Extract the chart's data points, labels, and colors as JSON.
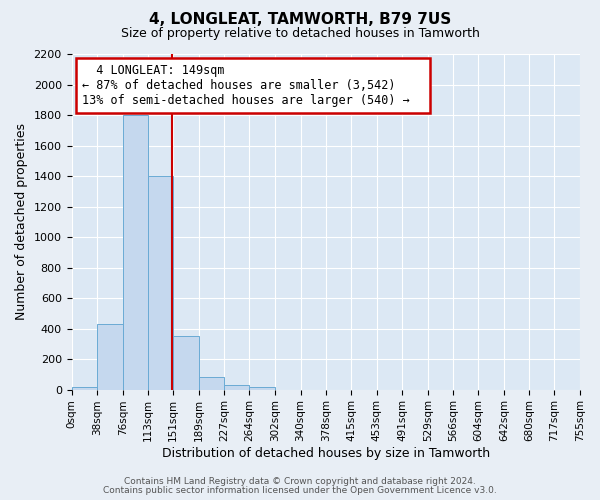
{
  "title": "4, LONGLEAT, TAMWORTH, B79 7US",
  "subtitle": "Size of property relative to detached houses in Tamworth",
  "xlabel": "Distribution of detached houses by size in Tamworth",
  "ylabel": "Number of detached properties",
  "bin_edges": [
    0,
    38,
    76,
    113,
    151,
    189,
    227,
    264,
    302,
    340,
    378,
    415,
    453,
    491,
    529,
    566,
    604,
    642,
    680,
    717,
    755
  ],
  "bin_labels": [
    "0sqm",
    "38sqm",
    "76sqm",
    "113sqm",
    "151sqm",
    "189sqm",
    "227sqm",
    "264sqm",
    "302sqm",
    "340sqm",
    "378sqm",
    "415sqm",
    "453sqm",
    "491sqm",
    "529sqm",
    "566sqm",
    "604sqm",
    "642sqm",
    "680sqm",
    "717sqm",
    "755sqm"
  ],
  "bar_heights": [
    20,
    430,
    1800,
    1400,
    350,
    80,
    30,
    20,
    0,
    0,
    0,
    0,
    0,
    0,
    0,
    0,
    0,
    0,
    0,
    0
  ],
  "bar_color": "#c5d8ee",
  "bar_edge_color": "#6aaad4",
  "vline_x": 149,
  "vline_color": "#cc0000",
  "ylim": [
    0,
    2200
  ],
  "yticks": [
    0,
    200,
    400,
    600,
    800,
    1000,
    1200,
    1400,
    1600,
    1800,
    2000,
    2200
  ],
  "annotation_title": "4 LONGLEAT: 149sqm",
  "annotation_line1": "← 87% of detached houses are smaller (3,542)",
  "annotation_line2": "13% of semi-detached houses are larger (540) →",
  "annotation_box_color": "#ffffff",
  "annotation_box_edge": "#cc0000",
  "footer1": "Contains HM Land Registry data © Crown copyright and database right 2024.",
  "footer2": "Contains public sector information licensed under the Open Government Licence v3.0.",
  "background_color": "#e8eef5",
  "plot_bg_color": "#dce8f4",
  "grid_color": "#ffffff",
  "title_fontsize": 11,
  "subtitle_fontsize": 9
}
